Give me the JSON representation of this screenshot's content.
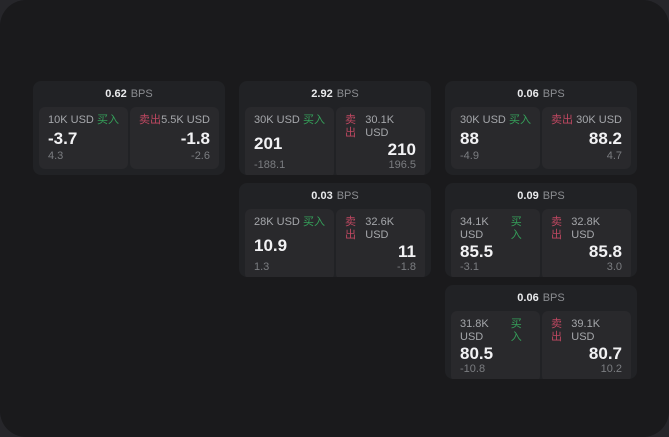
{
  "labels": {
    "bps": "BPS",
    "buy": "买入",
    "sell": "卖出"
  },
  "colors": {
    "outer_background": "#26262a",
    "panel_background": "#1a1a1c",
    "card_background": "#212225",
    "tile_background": "#29292c",
    "buy_green": "#35a05a",
    "sell_red": "#bf4861",
    "price_white": "#f2f2f4",
    "muted_gray": "#7b7d81"
  },
  "cards": [
    {
      "bps": "0.62",
      "buy": {
        "amount": "10K USD",
        "price": "-3.7",
        "change": "4.3"
      },
      "sell": {
        "amount": "5.5K USD",
        "price": "-1.8",
        "change": "-2.6"
      }
    },
    {
      "bps": "2.92",
      "buy": {
        "amount": "30K USD",
        "price": "201",
        "change": "-188.1"
      },
      "sell": {
        "amount": "30.1K USD",
        "price": "210",
        "change": "196.5"
      }
    },
    {
      "bps": "0.06",
      "buy": {
        "amount": "30K USD",
        "price": "88",
        "change": "-4.9"
      },
      "sell": {
        "amount": "30K USD",
        "price": "88.2",
        "change": "4.7"
      }
    },
    {
      "bps": "0.03",
      "buy": {
        "amount": "28K USD",
        "price": "10.9",
        "change": "1.3"
      },
      "sell": {
        "amount": "32.6K USD",
        "price": "11",
        "change": "-1.8"
      }
    },
    {
      "bps": "0.09",
      "buy": {
        "amount": "34.1K USD",
        "price": "85.5",
        "change": "-3.1"
      },
      "sell": {
        "amount": "32.8K USD",
        "price": "85.8",
        "change": "3.0"
      }
    },
    {
      "bps": "0.06",
      "buy": {
        "amount": "31.8K USD",
        "price": "80.5",
        "change": "-10.8"
      },
      "sell": {
        "amount": "39.1K USD",
        "price": "80.7",
        "change": "10.2"
      }
    }
  ]
}
